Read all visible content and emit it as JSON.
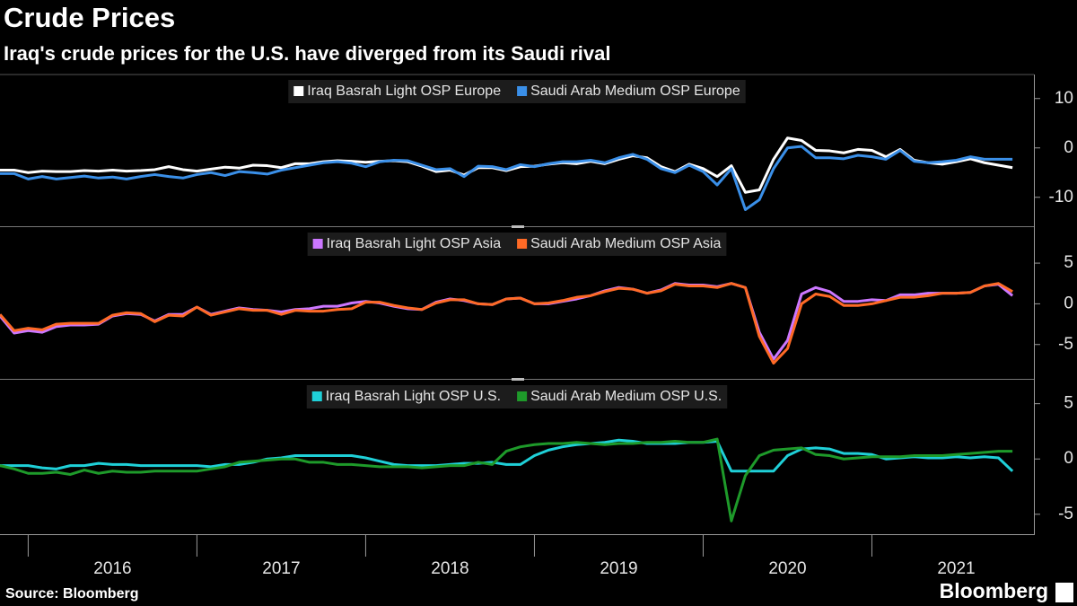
{
  "chart_data": {
    "type": "line",
    "title": "Crude Prices",
    "subtitle": "Iraq's crude prices for the U.S. have diverged from its Saudi rival",
    "source": "Source: Bloomberg",
    "brand": "Bloomberg",
    "x": [
      2015.833,
      2015.917,
      2016.0,
      2016.083,
      2016.167,
      2016.25,
      2016.333,
      2016.417,
      2016.5,
      2016.583,
      2016.667,
      2016.75,
      2016.833,
      2016.917,
      2017.0,
      2017.083,
      2017.167,
      2017.25,
      2017.333,
      2017.417,
      2017.5,
      2017.583,
      2017.667,
      2017.75,
      2017.833,
      2017.917,
      2018.0,
      2018.083,
      2018.167,
      2018.25,
      2018.333,
      2018.417,
      2018.5,
      2018.583,
      2018.667,
      2018.75,
      2018.833,
      2018.917,
      2019.0,
      2019.083,
      2019.167,
      2019.25,
      2019.333,
      2019.417,
      2019.5,
      2019.583,
      2019.667,
      2019.75,
      2019.833,
      2019.917,
      2020.0,
      2020.083,
      2020.167,
      2020.25,
      2020.333,
      2020.417,
      2020.5,
      2020.583,
      2020.667,
      2020.75,
      2020.833,
      2020.917,
      2021.0,
      2021.083,
      2021.167,
      2021.25,
      2021.333,
      2021.417,
      2021.5,
      2021.583,
      2021.667,
      2021.75,
      2021.833
    ],
    "xlim": [
      2015.833,
      2021.96
    ],
    "xticks": [
      2016,
      2017,
      2018,
      2019,
      2020,
      2021
    ],
    "panels": [
      {
        "ylim": [
          -15.5,
          14.5
        ],
        "yticks": [
          10,
          0,
          -10
        ],
        "series": [
          {
            "name": "Iraq Basrah Light OSP Europe",
            "color": "#ffffff",
            "values": [
              -4.5,
              -4.5,
              -5,
              -4.7,
              -4.8,
              -4.8,
              -4.6,
              -4.7,
              -4.5,
              -4.7,
              -4.6,
              -4.4,
              -3.8,
              -4.4,
              -4.7,
              -4.3,
              -3.9,
              -4.1,
              -3.5,
              -3.6,
              -4,
              -3.2,
              -3.2,
              -2.8,
              -2.6,
              -2.7,
              -2.9,
              -2.7,
              -2.6,
              -2.8,
              -3.7,
              -4.8,
              -4.5,
              -5.5,
              -4,
              -4,
              -4.6,
              -3.8,
              -3.7,
              -3.3,
              -3,
              -3.2,
              -2.7,
              -3.2,
              -2.3,
              -1.6,
              -2,
              -3.8,
              -4.8,
              -3.3,
              -4.2,
              -5.8,
              -3.6,
              -9,
              -8.5,
              -2.3,
              2,
              1.5,
              -0.5,
              -0.6,
              -1,
              -0.3,
              -0.5,
              -1.8,
              -0.3,
              -2.5,
              -3,
              -3.3,
              -2.8,
              -2.2,
              -3,
              -3.5,
              -4
            ]
          },
          {
            "name": "Saudi Arab Medium OSP Europe",
            "color": "#3a8fe8",
            "values": [
              -5.2,
              -5.2,
              -6.3,
              -5.8,
              -6.3,
              -6,
              -5.7,
              -6.1,
              -5.9,
              -6.3,
              -5.8,
              -5.4,
              -5.8,
              -6.1,
              -5.4,
              -5,
              -5.6,
              -4.8,
              -5,
              -5.3,
              -4.5,
              -4,
              -3.5,
              -3,
              -2.8,
              -3.1,
              -3.8,
              -2.8,
              -2.5,
              -2.6,
              -3.5,
              -4.4,
              -4.2,
              -5.8,
              -3.7,
              -3.8,
              -4.4,
              -3.4,
              -3.8,
              -3.2,
              -2.8,
              -2.8,
              -2.5,
              -3,
              -2,
              -1.3,
              -2.3,
              -4.2,
              -5,
              -3.5,
              -4.8,
              -7.5,
              -4.2,
              -12.5,
              -10.5,
              -4.2,
              0,
              0.3,
              -2,
              -2,
              -2.2,
              -1.5,
              -1.8,
              -2.3,
              -0.5,
              -2.7,
              -3,
              -2.8,
              -2.5,
              -1.8,
              -2.3,
              -2.3,
              -2.3
            ]
          }
        ]
      },
      {
        "ylim": [
          -9,
          9.2
        ],
        "yticks": [
          5,
          0,
          -5
        ],
        "series": [
          {
            "name": "Iraq Basrah Light OSP Asia",
            "color": "#cc77ff",
            "values": [
              -1.5,
              -3.6,
              -3.3,
              -3.5,
              -2.8,
              -2.6,
              -2.6,
              -2.5,
              -1.5,
              -1.2,
              -1.3,
              -2.1,
              -1.3,
              -1.3,
              -0.4,
              -1.3,
              -0.9,
              -0.5,
              -0.7,
              -0.8,
              -1,
              -0.7,
              -0.6,
              -0.3,
              -0.3,
              0.1,
              0.3,
              0.1,
              -0.3,
              -0.6,
              -0.7,
              0.2,
              0.6,
              0.4,
              0,
              -0.1,
              0.6,
              0.7,
              0,
              0,
              0.3,
              0.6,
              1,
              1.6,
              2,
              1.8,
              1.3,
              1.7,
              2.5,
              2.3,
              2.3,
              2.1,
              2.5,
              2,
              -3.5,
              -6.8,
              -4.5,
              1.2,
              2,
              1.5,
              0.3,
              0.3,
              0.5,
              0.4,
              1.1,
              1.1,
              1.3,
              1.3,
              1.3,
              1.4,
              2.2,
              2.4,
              1
            ]
          },
          {
            "name": "Saudi Arab Medium OSP Asia",
            "color": "#ff6a26",
            "values": [
              -1.3,
              -3.3,
              -3,
              -3.2,
              -2.5,
              -2.4,
              -2.4,
              -2.4,
              -1.4,
              -1.1,
              -1.2,
              -2.2,
              -1.4,
              -1.5,
              -0.4,
              -1.4,
              -1,
              -0.6,
              -0.8,
              -0.8,
              -1.3,
              -0.8,
              -0.9,
              -0.9,
              -0.7,
              -0.6,
              0.2,
              0.2,
              -0.2,
              -0.5,
              -0.7,
              0.1,
              0.5,
              0.5,
              0,
              -0.1,
              0.6,
              0.7,
              0,
              0.1,
              0.4,
              0.8,
              1,
              1.5,
              1.9,
              1.8,
              1.3,
              1.6,
              2.4,
              2.2,
              2.2,
              2,
              2.5,
              2,
              -4,
              -7.3,
              -5.5,
              0,
              1.2,
              0.9,
              -0.2,
              -0.2,
              0,
              0.4,
              0.8,
              0.8,
              1,
              1.3,
              1.3,
              1.4,
              2.2,
              2.5,
              1.5
            ]
          }
        ]
      },
      {
        "ylim": [
          -6.8,
          7
        ],
        "yticks": [
          5,
          0,
          -5
        ],
        "series": [
          {
            "name": "Iraq Basrah Light OSP U.S.",
            "color": "#1fd0d8",
            "values": [
              -0.6,
              -0.6,
              -0.6,
              -0.8,
              -0.9,
              -0.6,
              -0.6,
              -0.4,
              -0.5,
              -0.5,
              -0.6,
              -0.6,
              -0.6,
              -0.6,
              -0.6,
              -0.7,
              -0.5,
              -0.5,
              -0.3,
              0,
              0.1,
              0.3,
              0.3,
              0.3,
              0.3,
              0.3,
              0.1,
              -0.2,
              -0.5,
              -0.6,
              -0.6,
              -0.6,
              -0.5,
              -0.4,
              -0.4,
              -0.3,
              -0.5,
              -0.5,
              0.3,
              0.8,
              1.1,
              1.3,
              1.4,
              1.5,
              1.7,
              1.6,
              1.4,
              1.4,
              1.4,
              1.5,
              1.5,
              1.6,
              -1.1,
              -1.1,
              -1.1,
              -1.1,
              0.3,
              0.9,
              1,
              0.9,
              0.5,
              0.5,
              0.4,
              0,
              0.1,
              0.2,
              0.1,
              0.1,
              0.2,
              0.1,
              0.2,
              0.1,
              -1.1
            ]
          },
          {
            "name": "Saudi Arab Medium OSP U.S.",
            "color": "#1e9a2a",
            "values": [
              -0.6,
              -0.9,
              -1.3,
              -1.3,
              -1.2,
              -1.4,
              -1,
              -1.3,
              -1.1,
              -1.2,
              -1.2,
              -1.1,
              -1.1,
              -1.1,
              -1.1,
              -0.9,
              -0.7,
              -0.3,
              -0.2,
              -0.1,
              0,
              0,
              -0.3,
              -0.3,
              -0.5,
              -0.5,
              -0.6,
              -0.7,
              -0.7,
              -0.7,
              -0.8,
              -0.7,
              -0.6,
              -0.6,
              -0.3,
              -0.5,
              0.7,
              1.1,
              1.3,
              1.4,
              1.4,
              1.5,
              1.4,
              1.3,
              1.4,
              1.4,
              1.5,
              1.5,
              1.6,
              1.5,
              1.5,
              1.8,
              -5.6,
              -1.5,
              0.3,
              0.8,
              0.9,
              1,
              0.4,
              0.3,
              0,
              0.1,
              0.2,
              0.2,
              0.2,
              0.3,
              0.3,
              0.3,
              0.4,
              0.5,
              0.6,
              0.7,
              0.7
            ]
          }
        ]
      }
    ]
  }
}
